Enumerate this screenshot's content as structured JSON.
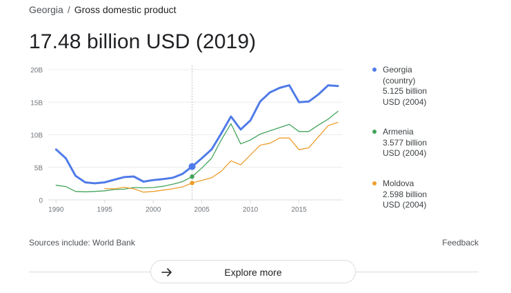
{
  "breadcrumb": {
    "country": "Georgia",
    "separator": "/",
    "topic": "Gross domestic product"
  },
  "headline": "17.48 billion USD (2019)",
  "legend": [
    {
      "color": "#4f7be8",
      "lines": [
        "Georgia",
        "(country)",
        "5.125 billion",
        "USD (2004)"
      ]
    },
    {
      "color": "#42a35a",
      "lines": [
        "Armenia",
        "3.577 billion",
        "USD (2004)"
      ]
    },
    {
      "color": "#ed9e2c",
      "lines": [
        "Moldova",
        "2.598 billion",
        "USD (2004)"
      ]
    }
  ],
  "footer": {
    "sources": "Sources include: World Bank",
    "feedback": "Feedback"
  },
  "explore": {
    "label": "Explore more",
    "icon": "arrow-right-icon"
  },
  "chart_data": {
    "type": "line",
    "xlim": [
      1989.2,
      2019.5
    ],
    "ylim": [
      0,
      20
    ],
    "x_ticks": [
      1990,
      1995,
      2000,
      2005,
      2010,
      2015
    ],
    "x_tick_labels": [
      "1990",
      "1995",
      "2000",
      "2005",
      "2010",
      "2015"
    ],
    "y_ticks": [
      0,
      5,
      10,
      15,
      20
    ],
    "y_tick_labels": [
      "0",
      "5B",
      "10B",
      "15B",
      "20B"
    ],
    "grid": true,
    "hover_x": 2004,
    "series": [
      {
        "name": "Georgia",
        "color": "#4f7be8",
        "highlight": true,
        "x": [
          1990,
          1991,
          1992,
          1993,
          1994,
          1995,
          1996,
          1997,
          1998,
          1999,
          2000,
          2001,
          2002,
          2003,
          2004,
          2005,
          2006,
          2007,
          2008,
          2009,
          2010,
          2011,
          2012,
          2013,
          2014,
          2015,
          2016,
          2017,
          2018,
          2019
        ],
        "values": [
          7.75,
          6.4,
          3.7,
          2.7,
          2.55,
          2.7,
          3.1,
          3.5,
          3.6,
          2.8,
          3.05,
          3.2,
          3.4,
          3.99,
          5.125,
          6.4,
          7.75,
          10.2,
          12.8,
          10.8,
          12.2,
          15.1,
          16.5,
          17.2,
          17.6,
          15.0,
          15.1,
          16.2,
          17.6,
          17.48
        ]
      },
      {
        "name": "Armenia",
        "color": "#42a35a",
        "highlight": false,
        "x": [
          1990,
          1991,
          1992,
          1993,
          1994,
          1995,
          1996,
          1997,
          1998,
          1999,
          2000,
          2001,
          2002,
          2003,
          2004,
          2005,
          2006,
          2007,
          2008,
          2009,
          2010,
          2011,
          2012,
          2013,
          2014,
          2015,
          2016,
          2017,
          2018,
          2019
        ],
        "values": [
          2.25,
          2.05,
          1.3,
          1.25,
          1.3,
          1.4,
          1.6,
          1.65,
          1.9,
          1.85,
          1.9,
          2.1,
          2.4,
          2.8,
          3.577,
          4.9,
          6.4,
          9.2,
          11.7,
          8.6,
          9.2,
          10.1,
          10.6,
          11.1,
          11.6,
          10.5,
          10.5,
          11.5,
          12.4,
          13.6
        ]
      },
      {
        "name": "Moldova",
        "color": "#ed9e2c",
        "highlight": false,
        "x": [
          1995,
          1996,
          1997,
          1998,
          1999,
          2000,
          2001,
          2002,
          2003,
          2004,
          2005,
          2006,
          2007,
          2008,
          2009,
          2010,
          2011,
          2012,
          2013,
          2014,
          2015,
          2016,
          2017,
          2018,
          2019
        ],
        "values": [
          1.75,
          1.7,
          1.95,
          1.7,
          1.2,
          1.3,
          1.5,
          1.7,
          2.0,
          2.598,
          3.0,
          3.4,
          4.4,
          6.0,
          5.4,
          6.9,
          8.4,
          8.7,
          9.5,
          9.5,
          7.7,
          8.0,
          9.7,
          11.4,
          11.9
        ]
      }
    ]
  }
}
